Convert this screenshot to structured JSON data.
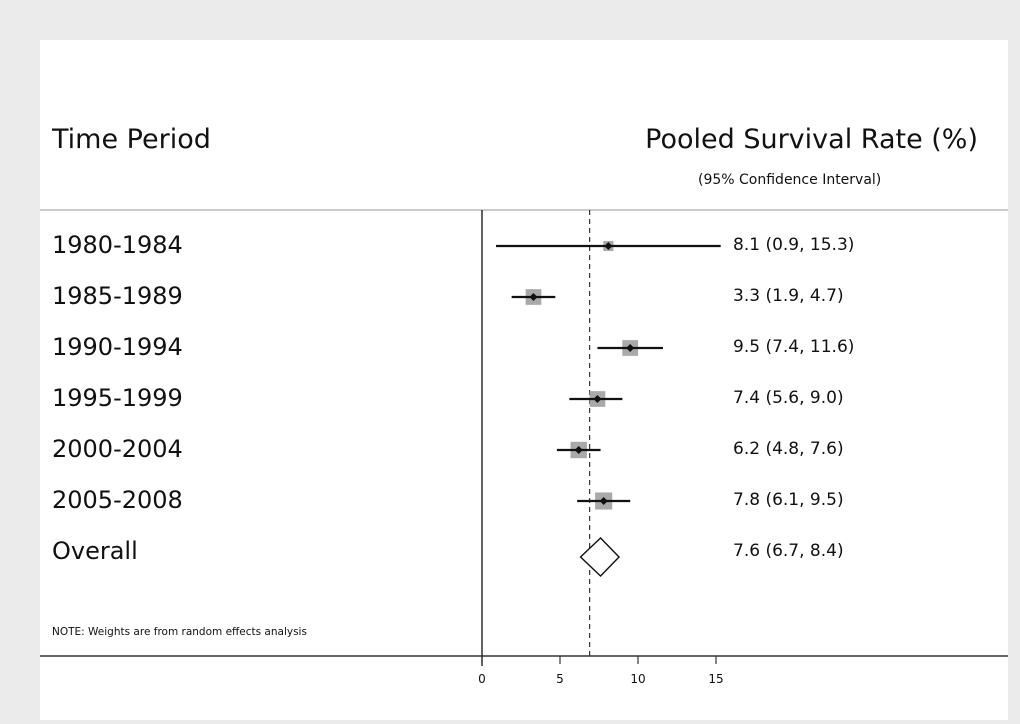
{
  "header": {
    "left_title": "Time Period",
    "right_title": "Pooled Survival Rate (%)",
    "right_subtitle": "(95% Confidence Interval)"
  },
  "note": "NOTE: Weights are from random effects analysis",
  "chart_data": {
    "type": "forest",
    "x_ticks": [
      0,
      5,
      10,
      15
    ],
    "xlim": [
      0,
      15
    ],
    "reference_line": 6.9,
    "rows": [
      {
        "label": "1980-1984",
        "estimate": 8.1,
        "lower": 0.9,
        "upper": 15.3,
        "text": "8.1 (0.9, 15.3)",
        "weight": 0.15
      },
      {
        "label": "1985-1989",
        "estimate": 3.3,
        "lower": 1.9,
        "upper": 4.7,
        "text": "3.3 (1.9, 4.7)",
        "weight": 0.55
      },
      {
        "label": "1990-1994",
        "estimate": 9.5,
        "lower": 7.4,
        "upper": 11.6,
        "text": "9.5 (7.4, 11.6)",
        "weight": 0.55
      },
      {
        "label": "1995-1999",
        "estimate": 7.4,
        "lower": 5.6,
        "upper": 9.0,
        "text": "7.4 (5.6, 9.0)",
        "weight": 0.55
      },
      {
        "label": "2000-2004",
        "estimate": 6.2,
        "lower": 4.8,
        "upper": 7.6,
        "text": "6.2 (4.8, 7.6)",
        "weight": 0.6
      },
      {
        "label": "2005-2008",
        "estimate": 7.8,
        "lower": 6.1,
        "upper": 9.5,
        "text": "7.8 (6.1, 9.5)",
        "weight": 0.65
      }
    ],
    "overall": {
      "label": "Overall",
      "estimate": 7.6,
      "lower": 6.7,
      "upper": 8.4,
      "text": "7.6 (6.7, 8.4)"
    }
  }
}
